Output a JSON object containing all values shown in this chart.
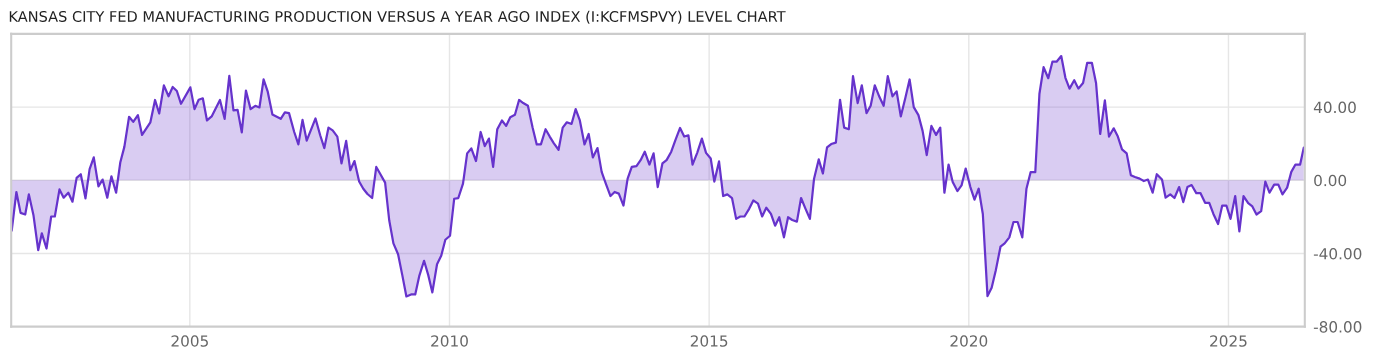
{
  "chart_data": {
    "type": "area",
    "title": "KANSAS CITY FED MANUFACTURING PRODUCTION VERSUS A YEAR AGO INDEX (I:KCFMSPVY) LEVEL CHART",
    "x": [
      2001.57,
      2001.66,
      2001.74,
      2001.83,
      2001.9,
      2001.99,
      2002.08,
      2002.15,
      2002.24,
      2002.33,
      2002.4,
      2002.49,
      2002.57,
      2002.66,
      2002.74,
      2002.82,
      2002.9,
      2002.99,
      2003.07,
      2003.15,
      2003.24,
      2003.32,
      2003.41,
      2003.49,
      2003.58,
      2003.66,
      2003.74,
      2003.83,
      2003.91,
      2004.0,
      2004.08,
      2004.24,
      2004.33,
      2004.41,
      2004.5,
      2004.59,
      2004.67,
      2004.75,
      2004.83,
      2005.01,
      2005.09,
      2005.17,
      2005.25,
      2005.33,
      2005.42,
      2005.58,
      2005.67,
      2005.76,
      2005.84,
      2005.92,
      2006.0,
      2006.08,
      2006.17,
      2006.26,
      2006.34,
      2006.42,
      2006.5,
      2006.59,
      2006.75,
      2006.83,
      2006.91,
      2007.01,
      2007.09,
      2007.17,
      2007.25,
      2007.42,
      2007.51,
      2007.59,
      2007.67,
      2007.75,
      2007.84,
      2007.92,
      2008.01,
      2008.09,
      2008.17,
      2008.26,
      2008.34,
      2008.42,
      2008.51,
      2008.59,
      2008.67,
      2008.76,
      2008.84,
      2008.92,
      2009.01,
      2009.09,
      2009.17,
      2009.26,
      2009.34,
      2009.42,
      2009.51,
      2009.59,
      2009.67,
      2009.76,
      2009.84,
      2009.92,
      2010.01,
      2010.09,
      2010.17,
      2010.26,
      2010.34,
      2010.42,
      2010.51,
      2010.6,
      2010.68,
      2010.76,
      2010.84,
      2010.92,
      2011.01,
      2011.09,
      2011.17,
      2011.26,
      2011.34,
      2011.42,
      2011.51,
      2011.6,
      2011.68,
      2011.76,
      2011.85,
      2011.93,
      2012.01,
      2012.1,
      2012.18,
      2012.26,
      2012.35,
      2012.43,
      2012.51,
      2012.6,
      2012.68,
      2012.76,
      2012.85,
      2012.93,
      2013.01,
      2013.1,
      2013.18,
      2013.26,
      2013.35,
      2013.43,
      2013.51,
      2013.6,
      2013.68,
      2013.76,
      2013.85,
      2013.93,
      2014.01,
      2014.1,
      2014.18,
      2014.27,
      2014.35,
      2014.44,
      2014.52,
      2014.6,
      2014.68,
      2014.77,
      2014.86,
      2014.94,
      2015.03,
      2015.1,
      2015.19,
      2015.27,
      2015.35,
      2015.44,
      2015.52,
      2015.6,
      2015.68,
      2015.77,
      2015.85,
      2015.94,
      2016.02,
      2016.1,
      2016.19,
      2016.27,
      2016.35,
      2016.44,
      2016.52,
      2016.6,
      2016.69,
      2016.77,
      2016.85,
      2016.94,
      2017.02,
      2017.11,
      2017.19,
      2017.27,
      2017.35,
      2017.44,
      2017.52,
      2017.6,
      2017.69,
      2017.77,
      2017.86,
      2017.94,
      2018.03,
      2018.11,
      2018.19,
      2018.28,
      2018.36,
      2018.44,
      2018.53,
      2018.61,
      2018.69,
      2018.78,
      2018.86,
      2018.94,
      2019.03,
      2019.11,
      2019.19,
      2019.28,
      2019.37,
      2019.45,
      2019.53,
      2019.61,
      2019.69,
      2019.78,
      2019.86,
      2019.94,
      2020.03,
      2020.11,
      2020.19,
      2020.27,
      2020.36,
      2020.44,
      2020.52,
      2020.61,
      2020.69,
      2020.78,
      2020.86,
      2020.94,
      2021.03,
      2021.11,
      2021.19,
      2021.28,
      2021.36,
      2021.44,
      2021.53,
      2021.61,
      2021.69,
      2021.78,
      2021.86,
      2021.94,
      2022.03,
      2022.11,
      2022.2,
      2022.28,
      2022.37,
      2022.45,
      2022.53,
      2022.62,
      2022.7,
      2022.79,
      2022.87,
      2022.95,
      2023.04,
      2023.12,
      2023.2,
      2023.29,
      2023.37,
      2023.45,
      2023.54,
      2023.62,
      2023.72,
      2023.79,
      2023.88,
      2023.96,
      2024.05,
      2024.13,
      2024.21,
      2024.29,
      2024.38,
      2024.46,
      2024.55,
      2024.63,
      2024.71,
      2024.8,
      2024.88,
      2024.96,
      2025.04,
      2025.13,
      2025.21,
      2025.29,
      2025.38,
      2025.46,
      2025.54,
      2025.63,
      2025.71,
      2025.79,
      2025.88,
      2025.96,
      2026.04,
      2026.13,
      2026.21,
      2026.29,
      2026.38,
      2026.45
    ],
    "series": [
      {
        "color": "#6633cc",
        "values": [
          -27.5,
          -6.4,
          -17.8,
          -18.7,
          -7.7,
          -19.3,
          -38.2,
          -29.0,
          -37.3,
          -19.8,
          -19.8,
          -5.0,
          -9.5,
          -6.8,
          -11.7,
          1.3,
          3.3,
          -9.9,
          6.1,
          12.5,
          -3.3,
          0.4,
          -9.5,
          2.2,
          -6.8,
          9.7,
          18.4,
          34.7,
          31.9,
          35.6,
          24.8,
          31.7,
          43.9,
          36.5,
          51.9,
          45.9,
          51.0,
          48.8,
          41.8,
          50.8,
          38.9,
          44.0,
          44.8,
          32.7,
          34.9,
          43.9,
          33.6,
          57.1,
          38.2,
          38.5,
          26.2,
          49.0,
          38.9,
          40.7,
          39.8,
          55.1,
          48.4,
          36.0,
          33.6,
          37.1,
          36.7,
          26.4,
          19.6,
          33.0,
          21.7,
          33.8,
          24.6,
          17.6,
          28.8,
          27.3,
          23.9,
          9.2,
          21.5,
          5.5,
          10.5,
          -0.7,
          -4.6,
          -7.5,
          -9.7,
          7.3,
          3.3,
          -1.3,
          -22.0,
          -34.5,
          -40.4,
          -51.7,
          -63.5,
          -62.4,
          -62.4,
          -52.1,
          -44.0,
          -51.7,
          -61.3,
          -45.9,
          -41.3,
          -32.5,
          -30.3,
          -10.1,
          -9.7,
          -1.8,
          14.7,
          17.4,
          10.5,
          26.4,
          18.7,
          22.8,
          7.3,
          27.9,
          32.7,
          29.7,
          34.5,
          35.8,
          43.9,
          42.2,
          40.7,
          28.8,
          19.6,
          19.6,
          27.9,
          23.9,
          20.2,
          16.7,
          28.8,
          31.7,
          30.8,
          38.9,
          32.7,
          19.6,
          25.3,
          12.5,
          17.6,
          4.6,
          -1.8,
          -8.6,
          -6.4,
          -7.3,
          -13.8,
          0.9,
          7.3,
          7.7,
          11.0,
          15.6,
          8.6,
          14.7,
          -3.7,
          9.2,
          11.0,
          15.6,
          22.0,
          28.6,
          23.9,
          24.6,
          8.6,
          15.0,
          22.8,
          15.0,
          11.9,
          -0.7,
          10.3,
          -8.6,
          -7.7,
          -9.7,
          -21.1,
          -19.8,
          -19.8,
          -15.6,
          -11.0,
          -12.8,
          -19.8,
          -15.0,
          -18.4,
          -24.8,
          -20.2,
          -31.2,
          -20.2,
          -21.7,
          -22.6,
          -9.7,
          -15.2,
          -21.1,
          0.9,
          11.4,
          3.7,
          18.0,
          19.8,
          20.6,
          44.0,
          28.8,
          27.9,
          56.9,
          42.2,
          51.9,
          36.7,
          40.7,
          51.9,
          45.5,
          40.7,
          56.9,
          45.9,
          48.6,
          34.9,
          45.3,
          55.1,
          40.0,
          35.6,
          27.0,
          13.8,
          29.7,
          24.8,
          28.8,
          -6.8,
          8.6,
          -0.9,
          -5.9,
          -2.8,
          6.4,
          -3.7,
          -10.6,
          -4.6,
          -18.4,
          -63.3,
          -58.7,
          -49.2,
          -36.3,
          -34.5,
          -31.2,
          -22.8,
          -22.8,
          -31.2,
          -4.6,
          4.4,
          4.4,
          47.3,
          61.8,
          55.8,
          64.8,
          64.8,
          67.9,
          56.0,
          50.1,
          54.7,
          50.1,
          53.2,
          64.2,
          64.2,
          53.2,
          25.3,
          43.7,
          23.9,
          28.4,
          23.9,
          16.9,
          14.7,
          2.8,
          1.8,
          0.9,
          -0.4,
          0.4,
          -6.8,
          3.3,
          0.4,
          -9.5,
          -7.7,
          -9.7,
          -3.7,
          -11.9,
          -3.7,
          -2.6,
          -7.0,
          -7.0,
          -12.3,
          -12.3,
          -18.4,
          -23.9,
          -13.8,
          -13.8,
          -21.1,
          -8.6,
          -27.9,
          -8.6,
          -12.5,
          -14.3,
          -18.7,
          -16.9,
          -0.7,
          -6.8,
          -2.4,
          -2.4,
          -7.7,
          -4.0,
          4.6,
          8.6,
          8.6,
          17.8
        ]
      }
    ],
    "xlim": [
      2001.56,
      2026.47
    ],
    "xticks": [
      2005,
      2010,
      2015,
      2020,
      2025
    ],
    "ylim": [
      -80,
      80
    ],
    "yticks": [
      {
        "value": 40,
        "label": "40.00"
      },
      {
        "value": 0,
        "label": "0.00"
      },
      {
        "value": -40,
        "label": "-40.00"
      },
      {
        "value": -80,
        "label": "-80.00"
      }
    ],
    "grid": true
  }
}
